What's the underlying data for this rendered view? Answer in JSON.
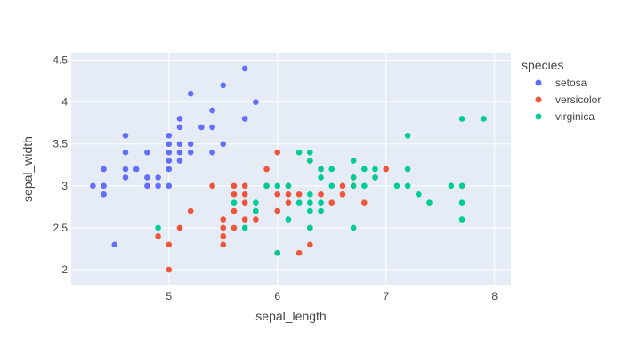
{
  "chart_data": {
    "type": "scatter",
    "xlabel": "sepal_length",
    "ylabel": "sepal_width",
    "xlim": [
      4.1,
      8.15
    ],
    "ylim": [
      1.82,
      4.58
    ],
    "x_ticks": [
      5,
      6,
      7,
      8
    ],
    "y_ticks": [
      2,
      2.5,
      3,
      3.5,
      4,
      4.5
    ],
    "grid": true,
    "legend": {
      "title": "species",
      "placement": "right"
    },
    "plot_bg": "#E5ECF6",
    "series": [
      {
        "name": "setosa",
        "color": "#636EFA",
        "points": [
          [
            4.3,
            3.0
          ],
          [
            4.4,
            3.0
          ],
          [
            4.4,
            2.9
          ],
          [
            4.4,
            3.2
          ],
          [
            4.5,
            2.3
          ],
          [
            4.6,
            3.1
          ],
          [
            4.6,
            3.2
          ],
          [
            4.6,
            3.4
          ],
          [
            4.6,
            3.6
          ],
          [
            4.7,
            3.2
          ],
          [
            4.8,
            3.0
          ],
          [
            4.8,
            3.1
          ],
          [
            4.8,
            3.4
          ],
          [
            4.9,
            3.0
          ],
          [
            4.9,
            3.1
          ],
          [
            5.0,
            3.0
          ],
          [
            5.0,
            3.2
          ],
          [
            5.0,
            3.3
          ],
          [
            5.0,
            3.4
          ],
          [
            5.0,
            3.5
          ],
          [
            5.0,
            3.6
          ],
          [
            5.1,
            3.3
          ],
          [
            5.1,
            3.4
          ],
          [
            5.1,
            3.5
          ],
          [
            5.1,
            3.7
          ],
          [
            5.1,
            3.8
          ],
          [
            5.2,
            3.4
          ],
          [
            5.2,
            3.5
          ],
          [
            5.2,
            4.1
          ],
          [
            5.3,
            3.7
          ],
          [
            5.4,
            3.4
          ],
          [
            5.4,
            3.7
          ],
          [
            5.4,
            3.9
          ],
          [
            5.5,
            3.5
          ],
          [
            5.5,
            4.2
          ],
          [
            5.7,
            3.8
          ],
          [
            5.7,
            4.4
          ],
          [
            5.8,
            4.0
          ]
        ]
      },
      {
        "name": "versicolor",
        "color": "#EF553B",
        "points": [
          [
            4.9,
            2.4
          ],
          [
            5.0,
            2.0
          ],
          [
            5.0,
            2.3
          ],
          [
            5.1,
            2.5
          ],
          [
            5.2,
            2.7
          ],
          [
            5.4,
            3.0
          ],
          [
            5.5,
            2.3
          ],
          [
            5.5,
            2.4
          ],
          [
            5.5,
            2.5
          ],
          [
            5.5,
            2.6
          ],
          [
            5.6,
            2.5
          ],
          [
            5.6,
            2.7
          ],
          [
            5.6,
            2.9
          ],
          [
            5.6,
            3.0
          ],
          [
            5.7,
            2.6
          ],
          [
            5.7,
            2.8
          ],
          [
            5.7,
            2.9
          ],
          [
            5.7,
            3.0
          ],
          [
            5.8,
            2.6
          ],
          [
            5.8,
            2.7
          ],
          [
            5.9,
            3.0
          ],
          [
            5.9,
            3.2
          ],
          [
            6.0,
            2.2
          ],
          [
            6.0,
            2.7
          ],
          [
            6.0,
            2.9
          ],
          [
            6.0,
            3.4
          ],
          [
            6.1,
            2.8
          ],
          [
            6.1,
            2.9
          ],
          [
            6.1,
            3.0
          ],
          [
            6.2,
            2.2
          ],
          [
            6.2,
            2.9
          ],
          [
            6.3,
            2.3
          ],
          [
            6.3,
            2.5
          ],
          [
            6.3,
            3.3
          ],
          [
            6.4,
            2.9
          ],
          [
            6.4,
            3.2
          ],
          [
            6.5,
            2.8
          ],
          [
            6.6,
            2.9
          ],
          [
            6.6,
            3.0
          ],
          [
            6.7,
            3.0
          ],
          [
            6.7,
            3.1
          ],
          [
            6.8,
            2.8
          ],
          [
            6.9,
            3.1
          ],
          [
            7.0,
            3.2
          ]
        ]
      },
      {
        "name": "virginica",
        "color": "#00CC96",
        "points": [
          [
            4.9,
            2.5
          ],
          [
            5.6,
            2.8
          ],
          [
            5.7,
            2.5
          ],
          [
            5.8,
            2.7
          ],
          [
            5.8,
            2.8
          ],
          [
            5.9,
            3.0
          ],
          [
            6.0,
            2.2
          ],
          [
            6.0,
            3.0
          ],
          [
            6.1,
            2.6
          ],
          [
            6.1,
            3.0
          ],
          [
            6.2,
            2.8
          ],
          [
            6.2,
            3.4
          ],
          [
            6.3,
            2.5
          ],
          [
            6.3,
            2.7
          ],
          [
            6.3,
            2.8
          ],
          [
            6.3,
            2.9
          ],
          [
            6.3,
            3.3
          ],
          [
            6.3,
            3.4
          ],
          [
            6.4,
            2.7
          ],
          [
            6.4,
            2.8
          ],
          [
            6.4,
            3.1
          ],
          [
            6.4,
            3.2
          ],
          [
            6.5,
            3.0
          ],
          [
            6.5,
            3.2
          ],
          [
            6.7,
            2.5
          ],
          [
            6.7,
            3.0
          ],
          [
            6.7,
            3.1
          ],
          [
            6.7,
            3.3
          ],
          [
            6.8,
            3.0
          ],
          [
            6.8,
            3.2
          ],
          [
            6.9,
            3.1
          ],
          [
            6.9,
            3.2
          ],
          [
            7.1,
            3.0
          ],
          [
            7.2,
            3.0
          ],
          [
            7.2,
            3.2
          ],
          [
            7.2,
            3.6
          ],
          [
            7.3,
            2.9
          ],
          [
            7.4,
            2.8
          ],
          [
            7.6,
            3.0
          ],
          [
            7.7,
            2.6
          ],
          [
            7.7,
            2.8
          ],
          [
            7.7,
            3.0
          ],
          [
            7.7,
            3.8
          ],
          [
            7.9,
            3.8
          ]
        ]
      }
    ]
  }
}
